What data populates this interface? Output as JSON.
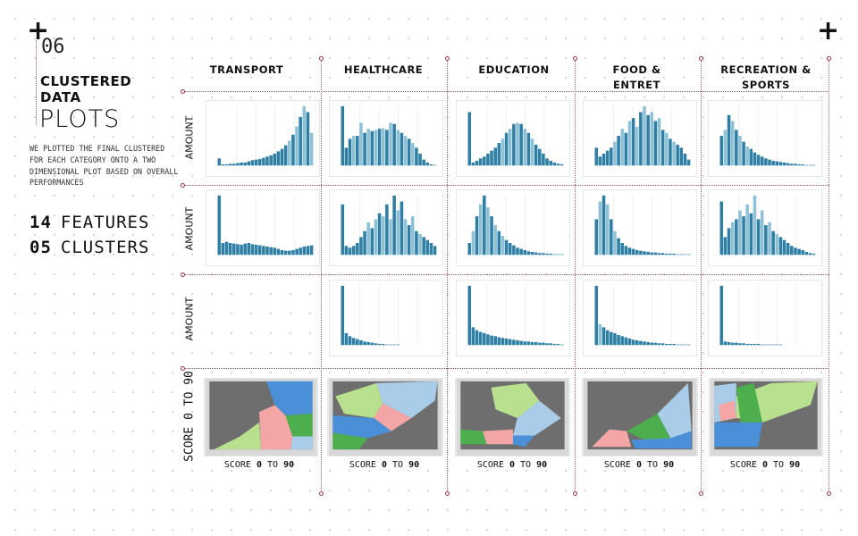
{
  "slide": {
    "number": "06",
    "title_bold": "CLUSTERED DATA",
    "title_light": "PLOTS",
    "description": "WE PLOTTED THE FINAL CLUSTERED FOR EACH CATEGORY ONTO A TWO DIMENSIONAL PLOT BASED ON OVERALL PERFORMANCES",
    "stats": [
      {
        "value": "14",
        "label": "FEATURES"
      },
      {
        "value": "05",
        "label": "CLUSTERS"
      }
    ]
  },
  "columns": [
    "TRANSPORT",
    "HEALTHCARE",
    "EDUCATION",
    "FOOD & ENTRET",
    "RECREATION & SPORTS"
  ],
  "row_labels": {
    "histogram": "AMOUNT",
    "scatter": "SCORE 0 TO 90"
  },
  "x_label": {
    "pre": "SCORE ",
    "bold1": "0",
    "mid": " TO ",
    "bold2": "90"
  },
  "colors": {
    "bar": "#2e7fa3",
    "bar_light": "#8fc1d6",
    "scatter_bg": "#6e6e6e",
    "clusters": [
      "#4a90d9",
      "#a9cde8",
      "#4cae4c",
      "#b8e08e",
      "#f4a5a5"
    ],
    "accent": "#a03050"
  },
  "chart_data": {
    "type": "bar",
    "title": "Clustered data plots",
    "ylabel": "AMOUNT",
    "xlabel": "SCORE 0 TO 90",
    "xlim": [
      0,
      100
    ],
    "histograms": [
      {
        "category": "TRANSPORT",
        "row": 1,
        "values": [
          0.12,
          0.02,
          0.02,
          0.03,
          0.03,
          0.04,
          0.05,
          0.05,
          0.07,
          0.09,
          0.1,
          0.11,
          0.13,
          0.15,
          0.17,
          0.2,
          0.24,
          0.28,
          0.34,
          0.42,
          0.52,
          0.66,
          0.82,
          1,
          0.9,
          0.55
        ]
      },
      {
        "category": "HEALTHCARE",
        "row": 1,
        "values": [
          1,
          0.3,
          0.45,
          0.5,
          0.5,
          0.72,
          0.55,
          0.62,
          0.58,
          0.6,
          0.62,
          0.63,
          0.6,
          0.72,
          0.7,
          0.6,
          0.55,
          0.5,
          0.45,
          0.38,
          0.3,
          0.2,
          0.1,
          0.05,
          0.02,
          0.01
        ]
      },
      {
        "category": "EDUCATION",
        "row": 1,
        "values": [
          0.9,
          0.05,
          0.08,
          0.12,
          0.15,
          0.2,
          0.25,
          0.3,
          0.38,
          0.45,
          0.55,
          0.62,
          0.7,
          0.72,
          0.7,
          0.62,
          0.55,
          0.45,
          0.35,
          0.28,
          0.2,
          0.12,
          0.08,
          0.05,
          0.03,
          0.02
        ]
      },
      {
        "category": "FOOD & ENTRET",
        "row": 1,
        "values": [
          0.3,
          0.15,
          0.2,
          0.25,
          0.3,
          0.4,
          0.5,
          0.62,
          0.55,
          0.75,
          0.8,
          0.65,
          0.9,
          1,
          0.85,
          0.9,
          0.75,
          0.8,
          0.6,
          0.55,
          0.45,
          0.4,
          0.35,
          0.3,
          0.2,
          0.1
        ]
      },
      {
        "category": "RECREATION & SPORTS",
        "row": 1,
        "values": [
          0.5,
          0.6,
          0.85,
          0.75,
          0.6,
          0.5,
          0.4,
          0.32,
          0.28,
          0.22,
          0.18,
          0.15,
          0.12,
          0.1,
          0.08,
          0.07,
          0.06,
          0.05,
          0.04,
          0.03,
          0.03,
          0.02,
          0.02,
          0.01,
          0.01,
          0.01
        ]
      },
      {
        "category": "TRANSPORT",
        "row": 2,
        "values": [
          1,
          0.2,
          0.22,
          0.2,
          0.19,
          0.18,
          0.17,
          0.19,
          0.2,
          0.18,
          0.17,
          0.16,
          0.15,
          0.14,
          0.13,
          0.12,
          0.1,
          0.08,
          0.07,
          0.07,
          0.08,
          0.1,
          0.12,
          0.14,
          0.15,
          0.16
        ]
      },
      {
        "category": "HEALTHCARE",
        "row": 2,
        "values": [
          0.85,
          0.15,
          0.12,
          0.15,
          0.2,
          0.3,
          0.4,
          0.55,
          0.45,
          0.6,
          0.7,
          0.65,
          0.85,
          0.6,
          1,
          0.75,
          0.9,
          0.6,
          0.5,
          0.65,
          0.4,
          0.35,
          0.3,
          0.25,
          0.2,
          0.15
        ]
      },
      {
        "category": "EDUCATION",
        "row": 2,
        "values": [
          0.2,
          0.4,
          0.65,
          0.85,
          1,
          0.8,
          0.65,
          0.5,
          0.4,
          0.32,
          0.25,
          0.2,
          0.16,
          0.12,
          0.1,
          0.08,
          0.06,
          0.05,
          0.04,
          0.03,
          0.03,
          0.02,
          0.02,
          0.01,
          0.01,
          0.01
        ]
      },
      {
        "category": "FOOD & ENTRET",
        "row": 2,
        "values": [
          0.6,
          0.9,
          1,
          0.85,
          0.6,
          0.4,
          0.28,
          0.2,
          0.15,
          0.12,
          0.1,
          0.08,
          0.07,
          0.06,
          0.05,
          0.04,
          0.04,
          0.03,
          0.03,
          0.02,
          0.02,
          0.02,
          0.01,
          0.01,
          0.01,
          0.01
        ]
      },
      {
        "category": "RECREATION & SPORTS",
        "row": 2,
        "values": [
          0.9,
          0.3,
          0.45,
          0.55,
          0.6,
          0.75,
          0.65,
          0.85,
          0.7,
          1,
          0.6,
          0.75,
          0.5,
          0.55,
          0.4,
          0.35,
          0.3,
          0.25,
          0.2,
          0.15,
          0.12,
          0.1,
          0.08,
          0.05,
          0.03,
          0.02
        ]
      },
      {
        "category": "HEALTHCARE",
        "row": 3,
        "values": [
          1,
          0.2,
          0.15,
          0.12,
          0.1,
          0.08,
          0.06,
          0.05,
          0.04,
          0.03,
          0.02,
          0.02,
          0.01,
          0.01,
          0.01,
          0.01,
          0,
          0,
          0,
          0,
          0,
          0,
          0,
          0,
          0,
          0
        ]
      },
      {
        "category": "EDUCATION",
        "row": 3,
        "values": [
          1,
          0.3,
          0.25,
          0.22,
          0.2,
          0.18,
          0.16,
          0.15,
          0.13,
          0.12,
          0.11,
          0.1,
          0.09,
          0.08,
          0.07,
          0.06,
          0.06,
          0.05,
          0.05,
          0.04,
          0.04,
          0.03,
          0.03,
          0.02,
          0.02,
          0.01
        ]
      },
      {
        "category": "FOOD & ENTRET",
        "row": 3,
        "values": [
          1,
          0.35,
          0.3,
          0.25,
          0.22,
          0.2,
          0.17,
          0.15,
          0.13,
          0.11,
          0.09,
          0.08,
          0.07,
          0.06,
          0.05,
          0.04,
          0.04,
          0.03,
          0.03,
          0.02,
          0.02,
          0.02,
          0.01,
          0.01,
          0.01,
          0.01
        ]
      },
      {
        "category": "RECREATION & SPORTS",
        "row": 3,
        "values": [
          1,
          0.06,
          0.05,
          0.04,
          0.04,
          0.03,
          0.03,
          0.02,
          0.02,
          0.02,
          0.02,
          0.01,
          0.01,
          0.01,
          0.01,
          0.01,
          0.01,
          0,
          0,
          0,
          0,
          0,
          0,
          0,
          0,
          0
        ]
      }
    ]
  }
}
